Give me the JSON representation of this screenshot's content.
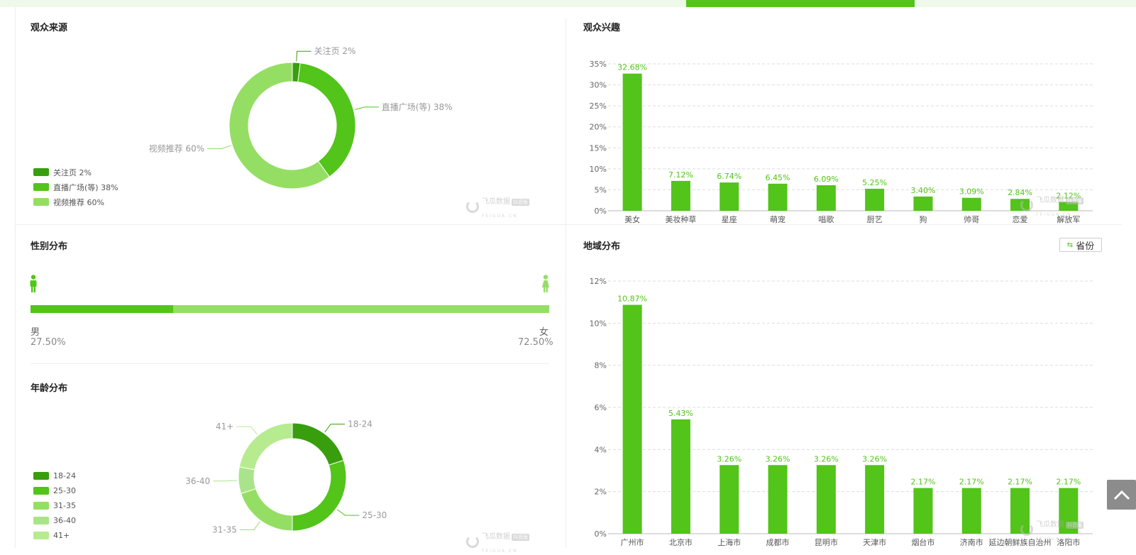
{
  "colors": {
    "accent": "#52c41a",
    "light": "#95de64",
    "dark": "#389e0d",
    "lighter": "#b7eb8f"
  },
  "panels": {
    "source": "观众来源",
    "interest": "观众兴趣",
    "gender": "性别分布",
    "region": "地域分布",
    "age": "年龄分布"
  },
  "source_chart": {
    "type": "pie",
    "slices": [
      {
        "name": "关注页",
        "value": 2,
        "label": "关注页 2%",
        "color": "#389e0d"
      },
      {
        "name": "直播广场(等)",
        "value": 38,
        "label": "直播广场(等) 38%",
        "color": "#52c41a"
      },
      {
        "name": "视频推荐",
        "value": 60,
        "label": "视频推荐 60%",
        "color": "#95de64"
      }
    ]
  },
  "gender": {
    "male_label": "男",
    "female_label": "女",
    "male_value": "27.50%",
    "female_value": "72.50%",
    "male_fraction": 0.275,
    "male_icon": "male-icon",
    "female_icon": "female-icon"
  },
  "age_chart": {
    "type": "pie",
    "slices": [
      {
        "name": "18-24",
        "value": 20,
        "color": "#389e0d"
      },
      {
        "name": "25-30",
        "value": 30,
        "color": "#52c41a"
      },
      {
        "name": "31-35",
        "value": 20,
        "color": "#95de64"
      },
      {
        "name": "36-40",
        "value": 8,
        "color": "#a9e48a"
      },
      {
        "name": "41+",
        "value": 22,
        "color": "#b7eb8f"
      }
    ]
  },
  "watermark": {
    "text": "飞瓜数据",
    "sub": "FEIGUA.CN",
    "tag": "抖音版"
  },
  "region_toggle": {
    "label": "省份",
    "icon": "toggle-icon"
  },
  "backtop_icon": "chevron-up-icon",
  "chart_data": [
    {
      "type": "bar",
      "categories": [
        "美女",
        "美妆种草",
        "星座",
        "萌宠",
        "唱歌",
        "厨艺",
        "狗",
        "帅哥",
        "恋爱",
        "解放军"
      ],
      "values": [
        32.68,
        7.12,
        6.74,
        6.45,
        6.09,
        5.25,
        3.4,
        3.09,
        2.84,
        2.12
      ],
      "value_labels": [
        "32.68%",
        "7.12%",
        "6.74%",
        "6.45%",
        "6.09%",
        "5.25%",
        "3.40%",
        "3.09%",
        "2.84%",
        "2.12%"
      ],
      "ylim": [
        0,
        35
      ],
      "yticks": [
        "0%",
        "5%",
        "10%",
        "15%",
        "20%",
        "25%",
        "30%",
        "35%"
      ],
      "grid": true
    },
    {
      "type": "bar",
      "categories": [
        "广州市",
        "北京市",
        "上海市",
        "成都市",
        "昆明市",
        "天津市",
        "烟台市",
        "济南市",
        "延边朝鲜族自治州",
        "洛阳市"
      ],
      "values": [
        10.87,
        5.43,
        3.26,
        3.26,
        3.26,
        3.26,
        2.17,
        2.17,
        2.17,
        2.17
      ],
      "value_labels": [
        "10.87%",
        "5.43%",
        "3.26%",
        "3.26%",
        "3.26%",
        "3.26%",
        "2.17%",
        "2.17%",
        "2.17%",
        "2.17%"
      ],
      "ylim": [
        0,
        12
      ],
      "yticks": [
        "0%",
        "2%",
        "4%",
        "6%",
        "8%",
        "10%",
        "12%"
      ],
      "grid": true
    }
  ]
}
